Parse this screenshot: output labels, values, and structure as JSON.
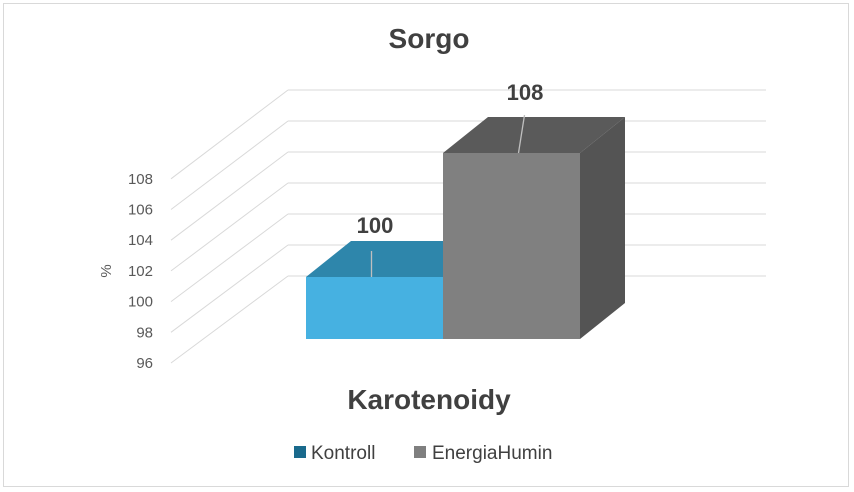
{
  "chart_data": {
    "type": "bar",
    "title": "Sorgo",
    "xlabel": "Karotenoidy",
    "ylabel": "%",
    "ylim": [
      96,
      108
    ],
    "yticks": [
      96,
      98,
      100,
      102,
      104,
      106,
      108
    ],
    "categories": [
      "Karotenoidy"
    ],
    "series": [
      {
        "name": "Kontroll",
        "values": [
          100
        ],
        "color": "#46b1e1",
        "top_color": "#2e86ab",
        "legend_color": "#1a6a8c"
      },
      {
        "name": "EnergiaHumin",
        "values": [
          108
        ],
        "color": "#808080",
        "top_color": "#5a5a5a",
        "side_color": "#545454",
        "legend_color": "#7f7f7f"
      }
    ],
    "data_labels": [
      "100",
      "108"
    ],
    "legend_position": "bottom",
    "style": "3d-column",
    "grid": true
  }
}
